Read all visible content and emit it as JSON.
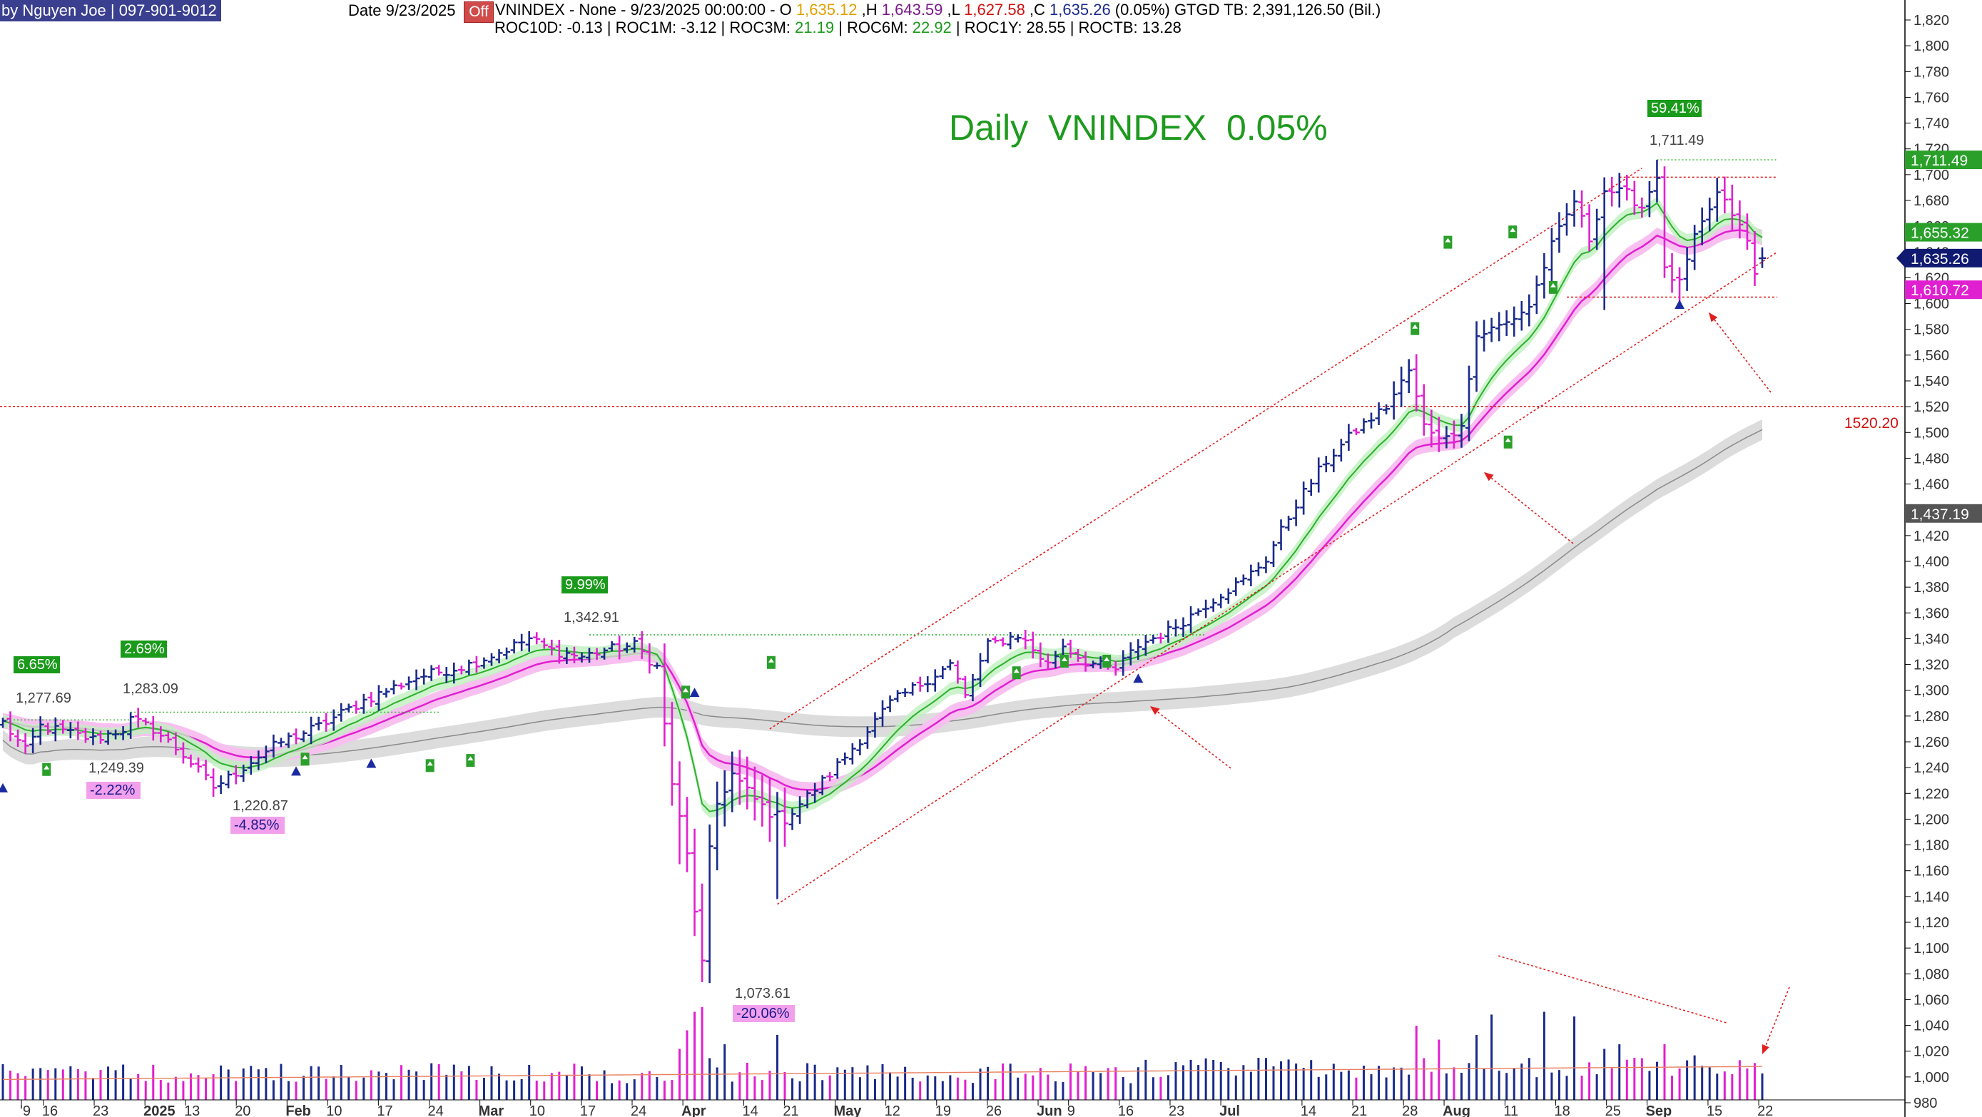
{
  "header": {
    "author": "by Nguyen Joe | 097-901-9012",
    "date": "Date 9/23/2025",
    "off": "Off",
    "symbol": "VNINDEX - None -  9/23/2025 00:00:00  -  O ",
    "open": "1,635.12",
    "h_label": " ,H ",
    "high": "1,643.59",
    "l_label": " ,L ",
    "low": "1,627.58",
    "c_label": " ,C ",
    "close": "1,635.26",
    "change": " (0.05%)  GTGD TB: 2,391,126.50 (Bil.)",
    "roc": [
      {
        "label": "ROC10D:",
        "value": "-0.13"
      },
      {
        "label": " | ROC1M:",
        "value": "-3.12"
      },
      {
        "label": " | ROC3M:",
        "value": "21.19"
      },
      {
        "label": " | ROC6M:",
        "value": "22.92"
      },
      {
        "label": " | ROC1Y:",
        "value": "28.55"
      },
      {
        "label": " | ROCTB:",
        "value": "13.28"
      }
    ]
  },
  "big_title": "Daily  VNINDEX  0.05%",
  "colors": {
    "up": "#1a2a8a",
    "down": "#e020d0",
    "open_color": "#e0a000",
    "high_color": "#7a1a8a",
    "low_color": "#d01010",
    "close_color": "#1a2a8a",
    "ema_fast": "#2cb02c",
    "ema_fast_band": "#bff0bf",
    "ema_slow": "#e020d0",
    "ema_slow_band": "#f8c0f0",
    "ma_long": "#8a8a8a",
    "ma_long_band": "#dcdcdc",
    "trend_red": "#e02020",
    "green_tag": "#1a9a1a",
    "pink_tag": "#f2a0ec"
  },
  "chart_data": {
    "type": "candlestick",
    "title": "Daily  VNINDEX  0.05%",
    "y_axis": {
      "min": 980,
      "max": 1820,
      "step": 20,
      "tick_labels": [
        "1,820",
        "1,800",
        "1,780",
        "1,760",
        "1,740",
        "1,720",
        "1,700",
        "1,680",
        "1,660",
        "1,640",
        "1,620",
        "1,600",
        "1,580",
        "1,560",
        "1,540",
        "1,520",
        "1,500",
        "1,480",
        "1,460",
        "1,440",
        "1,420",
        "1,400",
        "1,380",
        "1,360",
        "1,340",
        "1,320",
        "1,300",
        "1,280",
        "1,260",
        "1,240",
        "1,220",
        "1,200",
        "1,180",
        "1,160",
        "1,140",
        "1,120",
        "1,100",
        "1,080",
        "1,060",
        "1,040",
        "1,020",
        "1,000",
        "980"
      ]
    },
    "x_axis": {
      "tick_labels": [
        "'9",
        "16",
        "23",
        "2025",
        "13",
        "20",
        "Feb",
        "10",
        "17",
        "24",
        "Mar",
        "10",
        "17",
        "24",
        "Apr",
        "14",
        "21",
        "May",
        "12",
        "19",
        "26",
        "Jun",
        "9",
        "16",
        "23",
        "Jul",
        "14",
        "21",
        "28",
        "Aug",
        "11",
        "18",
        "25",
        "Sep",
        "15",
        "22"
      ],
      "bold": [
        "2025",
        "Feb",
        "Mar",
        "Apr",
        "May",
        "Jun",
        "Jul",
        "Aug",
        "Sep"
      ]
    },
    "price_labels": [
      {
        "name": "last",
        "value": "1,635.26"
      },
      {
        "name": "ema_fast",
        "value": "1,655.32"
      },
      {
        "name": "ema_slow",
        "value": "1,610.72"
      },
      {
        "name": "ma_long",
        "value": "1,437.19"
      },
      {
        "name": "peak",
        "value": "1,711.49"
      }
    ],
    "hline_value": "1520.20",
    "annotations": [
      {
        "text": "6.65%",
        "kind": "green"
      },
      {
        "text": "1,277.69",
        "kind": "text"
      },
      {
        "text": "2.69%",
        "kind": "green"
      },
      {
        "text": "1,283.09",
        "kind": "text"
      },
      {
        "text": "1,249.39",
        "kind": "text"
      },
      {
        "text": "-2.22%",
        "kind": "pink"
      },
      {
        "text": "1,220.87",
        "kind": "text"
      },
      {
        "text": "-4.85%",
        "kind": "pink"
      },
      {
        "text": "9.99%",
        "kind": "green"
      },
      {
        "text": "1,342.91",
        "kind": "text"
      },
      {
        "text": "1,073.61",
        "kind": "text"
      },
      {
        "text": "-20.06%",
        "kind": "pink"
      },
      {
        "text": "59.41%",
        "kind": "green"
      },
      {
        "text": "1,711.49",
        "kind": "text"
      }
    ],
    "anchors": [
      {
        "t": 0,
        "v": 1275
      },
      {
        "t": 3,
        "v": 1253
      },
      {
        "t": 5,
        "v": 1272
      },
      {
        "t": 8,
        "v": 1268
      },
      {
        "t": 12,
        "v": 1262
      },
      {
        "t": 16,
        "v": 1270
      },
      {
        "t": 17,
        "v": 1277
      },
      {
        "t": 20,
        "v": 1270
      },
      {
        "t": 24,
        "v": 1250
      },
      {
        "t": 28,
        "v": 1225
      },
      {
        "t": 30,
        "v": 1232
      },
      {
        "t": 33,
        "v": 1245
      },
      {
        "t": 37,
        "v": 1260
      },
      {
        "t": 42,
        "v": 1272
      },
      {
        "t": 48,
        "v": 1292
      },
      {
        "t": 55,
        "v": 1310
      },
      {
        "t": 62,
        "v": 1320
      },
      {
        "t": 67,
        "v": 1332
      },
      {
        "t": 70,
        "v": 1340
      },
      {
        "t": 73,
        "v": 1331
      },
      {
        "t": 77,
        "v": 1326
      },
      {
        "t": 80,
        "v": 1331
      },
      {
        "t": 84,
        "v": 1335
      },
      {
        "t": 87,
        "v": 1318
      },
      {
        "t": 89,
        "v": 1228
      },
      {
        "t": 91,
        "v": 1172
      },
      {
        "t": 93,
        "v": 1088
      },
      {
        "t": 94,
        "v": 1175
      },
      {
        "t": 95,
        "v": 1212
      },
      {
        "t": 97,
        "v": 1235
      },
      {
        "t": 100,
        "v": 1215
      },
      {
        "t": 102,
        "v": 1205
      },
      {
        "t": 104,
        "v": 1200
      },
      {
        "t": 106,
        "v": 1212
      },
      {
        "t": 110,
        "v": 1235
      },
      {
        "t": 114,
        "v": 1262
      },
      {
        "t": 118,
        "v": 1290
      },
      {
        "t": 122,
        "v": 1305
      },
      {
        "t": 126,
        "v": 1320
      },
      {
        "t": 128,
        "v": 1295
      },
      {
        "t": 131,
        "v": 1335
      },
      {
        "t": 135,
        "v": 1343
      },
      {
        "t": 139,
        "v": 1320
      },
      {
        "t": 141,
        "v": 1335
      },
      {
        "t": 144,
        "v": 1322
      },
      {
        "t": 148,
        "v": 1316
      },
      {
        "t": 151,
        "v": 1335
      },
      {
        "t": 155,
        "v": 1346
      },
      {
        "t": 158,
        "v": 1358
      },
      {
        "t": 162,
        "v": 1375
      },
      {
        "t": 165,
        "v": 1385
      },
      {
        "t": 168,
        "v": 1402
      },
      {
        "t": 172,
        "v": 1445
      },
      {
        "t": 176,
        "v": 1478
      },
      {
        "t": 180,
        "v": 1502
      },
      {
        "t": 184,
        "v": 1520
      },
      {
        "t": 187,
        "v": 1548
      },
      {
        "t": 189,
        "v": 1505
      },
      {
        "t": 192,
        "v": 1495
      },
      {
        "t": 194,
        "v": 1508
      },
      {
        "t": 196,
        "v": 1575
      },
      {
        "t": 200,
        "v": 1585
      },
      {
        "t": 203,
        "v": 1598
      },
      {
        "t": 206,
        "v": 1645
      },
      {
        "t": 209,
        "v": 1680
      },
      {
        "t": 211,
        "v": 1650
      },
      {
        "t": 213,
        "v": 1688
      },
      {
        "t": 216,
        "v": 1685
      },
      {
        "t": 218,
        "v": 1675
      },
      {
        "t": 220,
        "v": 1700
      },
      {
        "t": 221,
        "v": 1625
      },
      {
        "t": 223,
        "v": 1615
      },
      {
        "t": 225,
        "v": 1650
      },
      {
        "t": 228,
        "v": 1685
      },
      {
        "t": 230,
        "v": 1670
      },
      {
        "t": 232,
        "v": 1648
      },
      {
        "t": 233,
        "v": 1622
      },
      {
        "t": 234,
        "v": 1635
      }
    ],
    "volume": {
      "min": 0,
      "max": 100,
      "spikes": [
        {
          "t": 90,
          "v": 55
        },
        {
          "t": 91,
          "v": 75
        },
        {
          "t": 92,
          "v": 95
        },
        {
          "t": 93,
          "v": 100
        },
        {
          "t": 94,
          "v": 45
        },
        {
          "t": 95,
          "v": 35
        },
        {
          "t": 96,
          "v": 60
        },
        {
          "t": 99,
          "v": 40
        },
        {
          "t": 103,
          "v": 70
        },
        {
          "t": 188,
          "v": 80
        },
        {
          "t": 191,
          "v": 65
        },
        {
          "t": 196,
          "v": 70
        },
        {
          "t": 198,
          "v": 92
        },
        {
          "t": 205,
          "v": 95
        },
        {
          "t": 209,
          "v": 90
        },
        {
          "t": 213,
          "v": 55
        },
        {
          "t": 215,
          "v": 60
        },
        {
          "t": 218,
          "v": 45
        },
        {
          "t": 221,
          "v": 60
        },
        {
          "t": 225,
          "v": 48
        },
        {
          "t": 227,
          "v": 35
        }
      ]
    }
  }
}
